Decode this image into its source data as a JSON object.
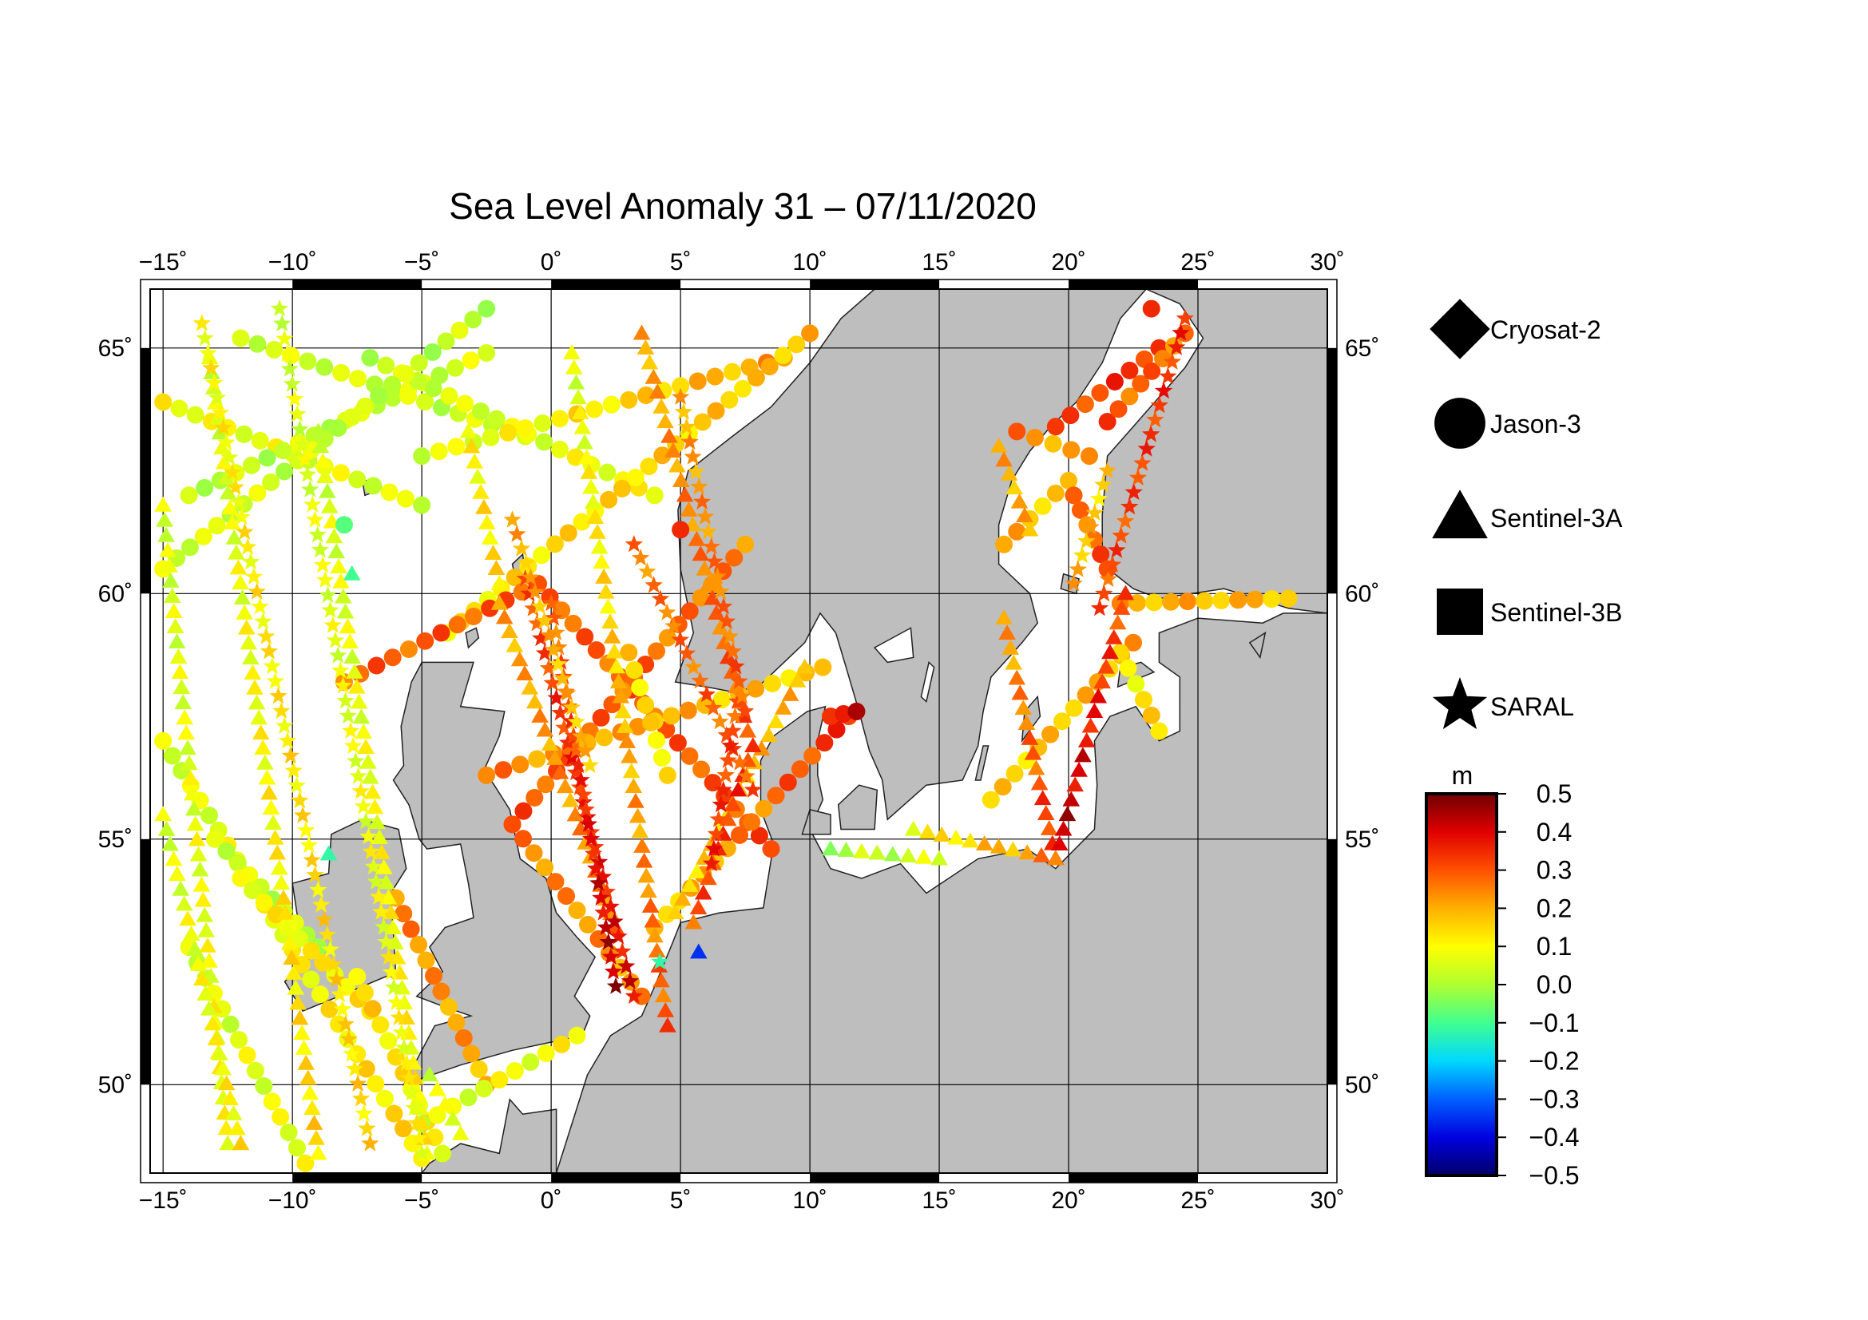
{
  "title": "Sea Level Anomaly 31 – 07/11/2020",
  "axes": {
    "lon_ticks": [
      "−15˚",
      "−10˚",
      "−5˚",
      "0˚",
      "5˚",
      "10˚",
      "15˚",
      "20˚",
      "25˚",
      "30˚"
    ],
    "lat_ticks": [
      "50˚",
      "55˚",
      "60˚",
      "65˚"
    ],
    "lon_values": [
      -15,
      -10,
      -5,
      0,
      5,
      10,
      15,
      20,
      25,
      30
    ],
    "lat_values": [
      50,
      55,
      60,
      65
    ],
    "lon_range": [
      -15.5,
      30
    ],
    "lat_range": [
      48.2,
      66.2
    ]
  },
  "legend": {
    "items": [
      {
        "label": "Cryosat-2",
        "symbol": "diamond"
      },
      {
        "label": "Jason-3",
        "symbol": "circle"
      },
      {
        "label": "Sentinel-3A",
        "symbol": "triangle"
      },
      {
        "label": "Sentinel-3B",
        "symbol": "square"
      },
      {
        "label": "SARAL",
        "symbol": "star"
      }
    ]
  },
  "colorbar": {
    "unit": "m",
    "labels": [
      "0.5",
      "0.4",
      "0.3",
      "0.2",
      "0.1",
      "0.0",
      "−0.1",
      "−0.2",
      "−0.3",
      "−0.4",
      "−0.5"
    ],
    "range": [
      -0.5,
      0.5
    ],
    "stops": [
      "#00006a",
      "#0000e0",
      "#0060ff",
      "#00d8ff",
      "#40ff90",
      "#b0ff30",
      "#ffff00",
      "#ffb000",
      "#ff5000",
      "#e00000",
      "#700000"
    ]
  },
  "colors": {
    "land": "#bebebe",
    "sea": "#ffffff",
    "grid": "#000000"
  },
  "chart_data": {
    "type": "scatter",
    "variable": "sea level anomaly (m)",
    "tracks": [
      {
        "sat": "Jason-3",
        "from": [
          -15,
          57.0
        ],
        "to": [
          -5,
          48.5
        ],
        "sla": [
          0.05,
          0.15
        ]
      },
      {
        "sat": "Jason-3",
        "from": [
          -15,
          63.9
        ],
        "to": [
          -5,
          61.8
        ],
        "sla": [
          0.1,
          0.05
        ]
      },
      {
        "sat": "Jason-3",
        "from": [
          -14,
          62.0
        ],
        "to": [
          -2.5,
          64.9
        ],
        "sla": [
          0.02,
          0.05
        ]
      },
      {
        "sat": "Jason-3",
        "from": [
          -12,
          65.2
        ],
        "to": [
          -1,
          63.2
        ],
        "sla": [
          0.05,
          0.03
        ]
      },
      {
        "sat": "Jason-3",
        "from": [
          -7,
          64.8
        ],
        "to": [
          4,
          62.0
        ],
        "sla": [
          0.03,
          0.1
        ]
      },
      {
        "sat": "Jason-3",
        "from": [
          -15,
          60.5
        ],
        "to": [
          -2.5,
          65.8
        ],
        "sla": [
          0.05,
          0.02
        ]
      },
      {
        "sat": "Jason-3",
        "from": [
          -5,
          62.8
        ],
        "to": [
          9,
          64.8
        ],
        "sla": [
          0.05,
          0.22
        ]
      },
      {
        "sat": "Jason-3",
        "from": [
          -4,
          59.2
        ],
        "to": [
          10,
          65.3
        ],
        "sla": [
          0.12,
          0.18
        ]
      },
      {
        "sat": "Jason-3",
        "from": [
          -8,
          58.2
        ],
        "to": [
          -0.5,
          60.2
        ],
        "sla": [
          0.28,
          0.3
        ]
      },
      {
        "sat": "Jason-3",
        "from": [
          -0.5,
          60.2
        ],
        "to": [
          8.5,
          54.8
        ],
        "sla": [
          0.28,
          0.3
        ]
      },
      {
        "sat": "Jason-3",
        "from": [
          -1.5,
          55.3
        ],
        "to": [
          3.5,
          51.8
        ],
        "sla": [
          0.25,
          0.22
        ]
      },
      {
        "sat": "Jason-3",
        "from": [
          -1.5,
          55.3
        ],
        "to": [
          7.5,
          61.0
        ],
        "sla": [
          0.3,
          0.25
        ]
      },
      {
        "sat": "Jason-3",
        "from": [
          -2.5,
          56.3
        ],
        "to": [
          10.5,
          58.5
        ],
        "sla": [
          0.25,
          0.15
        ]
      },
      {
        "sat": "Jason-3",
        "from": [
          4,
          53.2
        ],
        "to": [
          11.5,
          57.5
        ],
        "sla": [
          0.15,
          0.35
        ]
      },
      {
        "sat": "Jason-3",
        "from": [
          3,
          58.8
        ],
        "to": [
          4.5,
          56.3
        ],
        "sla": [
          0.15,
          0.12
        ]
      },
      {
        "sat": "Jason-3",
        "from": [
          -13,
          55.0
        ],
        "to": [
          -9,
          52.8
        ],
        "sla": [
          0.05,
          0.02
        ]
      },
      {
        "sat": "Jason-3",
        "from": [
          -12,
          54.2
        ],
        "to": [
          -7,
          51.5
        ],
        "sla": [
          0.1,
          0.12
        ]
      },
      {
        "sat": "Jason-3",
        "from": [
          -6,
          53.8
        ],
        "to": [
          -2.5,
          50.0
        ],
        "sla": [
          0.25,
          0.2
        ]
      },
      {
        "sat": "Jason-3",
        "from": [
          -7.5,
          52.2
        ],
        "to": [
          -4.2,
          48.6
        ],
        "sla": [
          0.15,
          0.1
        ]
      },
      {
        "sat": "Jason-3",
        "from": [
          -14,
          52.8
        ],
        "to": [
          -9.5,
          48.4
        ],
        "sla": [
          0.05,
          0.08
        ]
      },
      {
        "sat": "Jason-3",
        "from": [
          -5,
          49.2
        ],
        "to": [
          1,
          51.0
        ],
        "sla": [
          0.05,
          0.1
        ]
      },
      {
        "sat": "Jason-3",
        "from": [
          17,
          55.8
        ],
        "to": [
          22.5,
          59.0
        ],
        "sla": [
          0.15,
          0.2
        ]
      },
      {
        "sat": "Jason-3",
        "from": [
          20,
          62.3
        ],
        "to": [
          17.5,
          61.0
        ],
        "sla": [
          0.15,
          0.2
        ]
      },
      {
        "sat": "Jason-3",
        "from": [
          20.8,
          62.8
        ],
        "to": [
          18,
          63.3
        ],
        "sla": [
          0.2,
          0.25
        ]
      },
      {
        "sat": "Jason-3",
        "from": [
          19.5,
          63.4
        ],
        "to": [
          23.5,
          65.0
        ],
        "sla": [
          0.3,
          0.35
        ]
      },
      {
        "sat": "Jason-3",
        "from": [
          21.5,
          63.5
        ],
        "to": [
          24.5,
          65.3
        ],
        "sla": [
          0.3,
          0.25
        ]
      },
      {
        "sat": "Jason-3",
        "from": [
          20.2,
          62.0
        ],
        "to": [
          21.5,
          60.5
        ],
        "sla": [
          0.25,
          0.3
        ]
      },
      {
        "sat": "Jason-3",
        "from": [
          22,
          59.8
        ],
        "to": [
          28.5,
          59.9
        ],
        "sla": [
          0.2,
          0.18
        ]
      },
      {
        "sat": "Jason-3",
        "from": [
          22,
          58.8
        ],
        "to": [
          23.5,
          57.2
        ],
        "sla": [
          0.1,
          0.15
        ]
      },
      {
        "sat": "Jason-3",
        "from": [
          10.8,
          57.5
        ],
        "to": [
          11.8,
          57.6
        ],
        "sla": [
          0.38,
          0.4
        ]
      },
      {
        "sat": "Sentinel-3A",
        "from": [
          -15,
          61.8
        ],
        "to": [
          -12.5,
          48.8
        ],
        "sla": [
          0.05,
          0.1
        ]
      },
      {
        "sat": "Sentinel-3A",
        "from": [
          -13.2,
          64.8
        ],
        "to": [
          -9,
          48.6
        ],
        "sla": [
          0.05,
          0.15
        ]
      },
      {
        "sat": "Sentinel-3A",
        "from": [
          -9,
          63.3
        ],
        "to": [
          -4.8,
          48.6
        ],
        "sla": [
          0.05,
          0.12
        ]
      },
      {
        "sat": "Sentinel-3A",
        "from": [
          -3.2,
          63.3
        ],
        "to": [
          -2,
          60.2
        ],
        "sla": [
          0.1,
          0.15
        ]
      },
      {
        "sat": "Sentinel-3A",
        "from": [
          0.8,
          64.9
        ],
        "to": [
          4.5,
          51.2
        ],
        "sla": [
          0.05,
          0.3
        ]
      },
      {
        "sat": "Sentinel-3A",
        "from": [
          3.5,
          65.3
        ],
        "to": [
          7.6,
          57.2
        ],
        "sla": [
          0.2,
          0.3
        ]
      },
      {
        "sat": "Sentinel-3A",
        "from": [
          9.8,
          58.5
        ],
        "to": [
          4.8,
          53.5
        ],
        "sla": [
          0.2,
          0.15
        ]
      },
      {
        "sat": "Sentinel-3A",
        "from": [
          7.8,
          56.9
        ],
        "to": [
          5.5,
          53.3
        ],
        "sla": [
          0.35,
          0.3
        ]
      },
      {
        "sat": "Sentinel-3A",
        "from": [
          -2,
          59.8
        ],
        "to": [
          2.5,
          53.2
        ],
        "sla": [
          0.2,
          0.25
        ]
      },
      {
        "sat": "Sentinel-3A",
        "from": [
          -15,
          55.5
        ],
        "to": [
          -12,
          48.8
        ],
        "sla": [
          0.05,
          0.12
        ]
      },
      {
        "sat": "Sentinel-3A",
        "from": [
          -4.7,
          50.2
        ],
        "to": [
          -3.5,
          49.0
        ],
        "sla": [
          0.05,
          0.1
        ]
      },
      {
        "sat": "Sentinel-3A",
        "from": [
          17.5,
          59.5
        ],
        "to": [
          19.5,
          54.6
        ],
        "sla": [
          0.2,
          0.35
        ]
      },
      {
        "sat": "Sentinel-3A",
        "from": [
          22.2,
          60.0
        ],
        "to": [
          19.5,
          54.6
        ],
        "sla": [
          0.3,
          0.45
        ]
      },
      {
        "sat": "Sentinel-3A",
        "from": [
          17.3,
          63.0
        ],
        "to": [
          18.5,
          61.3
        ],
        "sla": [
          0.2,
          0.2
        ]
      },
      {
        "sat": "Sentinel-3A",
        "from": [
          14,
          55.2
        ],
        "to": [
          19.5,
          54.6
        ],
        "sla": [
          0.1,
          0.25
        ]
      },
      {
        "sat": "Sentinel-3A",
        "from": [
          10.8,
          54.8
        ],
        "to": [
          15,
          54.6
        ],
        "sla": [
          0.0,
          0.05
        ]
      },
      {
        "sat": "SARAL",
        "from": [
          -1,
          60.3
        ],
        "to": [
          3.2,
          51.8
        ],
        "sla": [
          0.3,
          0.4
        ]
      },
      {
        "sat": "SARAL",
        "from": [
          0,
          59.8
        ],
        "to": [
          2.5,
          52.0
        ],
        "sla": [
          0.25,
          0.45
        ]
      },
      {
        "sat": "SARAL",
        "from": [
          3.2,
          61.0
        ],
        "to": [
          7.8,
          56.0
        ],
        "sla": [
          0.25,
          0.3
        ]
      },
      {
        "sat": "SARAL",
        "from": [
          7.2,
          57.8
        ],
        "to": [
          6.2,
          54.5
        ],
        "sla": [
          0.3,
          0.35
        ]
      },
      {
        "sat": "SARAL",
        "from": [
          -1.5,
          61.5
        ],
        "to": [
          1.5,
          56.5
        ],
        "sla": [
          0.2,
          0.18
        ]
      },
      {
        "sat": "SARAL",
        "from": [
          -13.5,
          65.5
        ],
        "to": [
          -7,
          48.8
        ],
        "sla": [
          0.1,
          0.15
        ]
      },
      {
        "sat": "SARAL",
        "from": [
          -10.5,
          65.8
        ],
        "to": [
          -5,
          48.6
        ],
        "sla": [
          0.05,
          0.1
        ]
      },
      {
        "sat": "SARAL",
        "from": [
          5,
          64.0
        ],
        "to": [
          7.5,
          57.6
        ],
        "sla": [
          0.2,
          0.3
        ]
      },
      {
        "sat": "SARAL",
        "from": [
          21.2,
          59.7
        ],
        "to": [
          24.5,
          65.6
        ],
        "sla": [
          0.3,
          0.35
        ]
      },
      {
        "sat": "SARAL",
        "from": [
          21.5,
          62.5
        ],
        "to": [
          20.2,
          60.2
        ],
        "sla": [
          0.15,
          0.2
        ]
      }
    ],
    "single_points": [
      {
        "sat": "Sentinel-3A",
        "lon": 5.7,
        "lat": 52.7,
        "sla": -0.35
      },
      {
        "sat": "SARAL",
        "lon": 4.2,
        "lat": 52.5,
        "sla": -0.12
      },
      {
        "sat": "Sentinel-3A",
        "lon": -8.6,
        "lat": 54.7,
        "sla": -0.12
      },
      {
        "sat": "Sentinel-3A",
        "lon": -7.7,
        "lat": 60.4,
        "sla": -0.1
      },
      {
        "sat": "Jason-3",
        "lon": -8.0,
        "lat": 61.4,
        "sla": -0.08
      },
      {
        "sat": "Jason-3",
        "lon": 23.2,
        "lat": 65.8,
        "sla": 0.35
      },
      {
        "sat": "Jason-3",
        "lon": 5.0,
        "lat": 61.3,
        "sla": 0.35
      }
    ]
  }
}
